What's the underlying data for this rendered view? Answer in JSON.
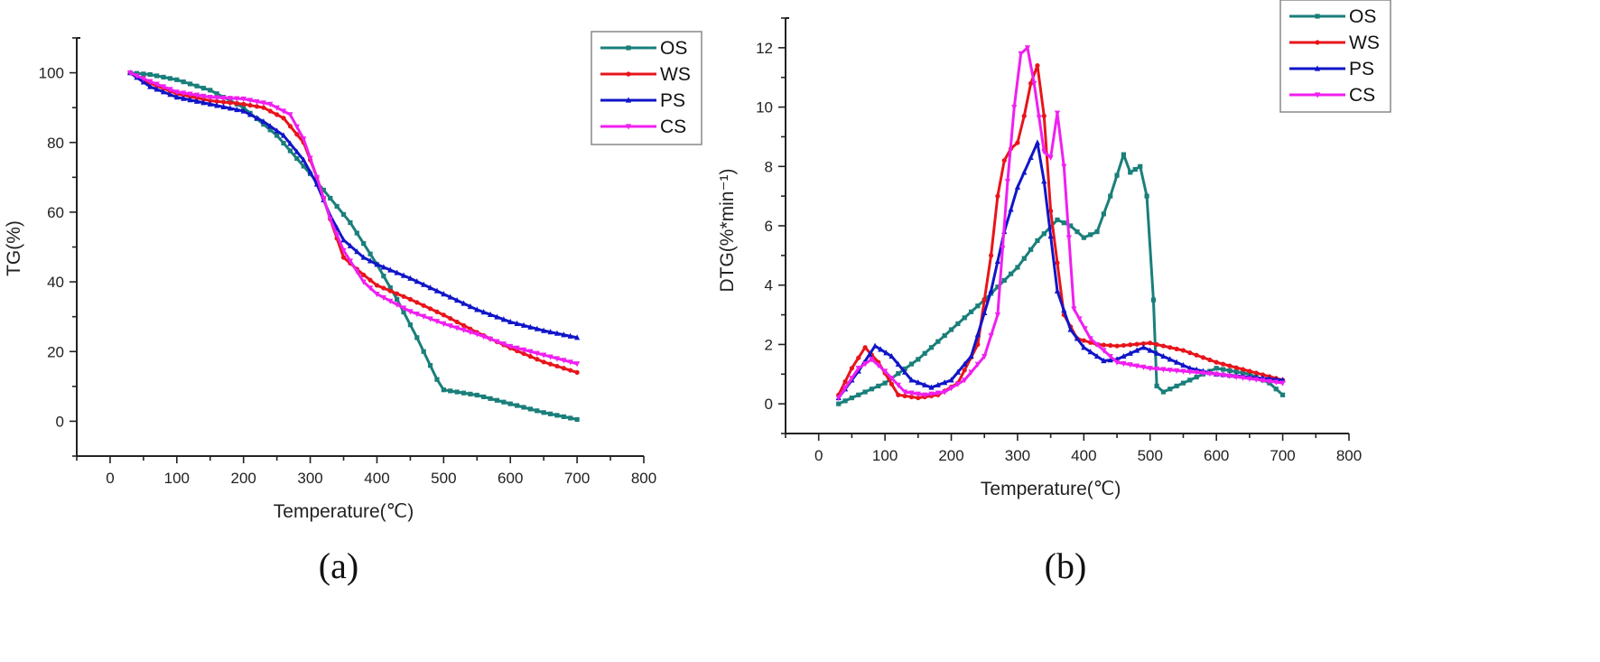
{
  "chart_data": [
    {
      "type": "line",
      "panel_label": "(a)",
      "xlabel": "Temperature(℃)",
      "ylabel": "TG(%)",
      "xlim": [
        -50,
        800
      ],
      "ylim": [
        -10,
        110
      ],
      "xticks": [
        0,
        100,
        200,
        300,
        400,
        500,
        600,
        700,
        800
      ],
      "yticks": [
        0,
        20,
        40,
        60,
        80,
        100
      ],
      "grid": false,
      "legend_position": "top-right",
      "legend": [
        "OS",
        "WS",
        "PS",
        "CS"
      ],
      "series": [
        {
          "name": "OS",
          "color": "#1a7f7a",
          "marker": "square",
          "x": [
            30,
            60,
            100,
            150,
            200,
            250,
            300,
            330,
            360,
            400,
            430,
            460,
            490,
            500,
            550,
            600,
            650,
            700
          ],
          "y": [
            100,
            99.5,
            98,
            95,
            90,
            82,
            71,
            64,
            57,
            45,
            35,
            24,
            12,
            9,
            7.5,
            5,
            2.5,
            0.5
          ]
        },
        {
          "name": "WS",
          "color": "#e8141b",
          "marker": "circle",
          "x": [
            30,
            60,
            100,
            150,
            200,
            230,
            260,
            290,
            310,
            330,
            350,
            380,
            400,
            450,
            500,
            550,
            600,
            650,
            700
          ],
          "y": [
            100,
            97,
            94,
            92,
            91,
            90,
            87,
            80,
            70,
            58,
            47,
            42,
            39,
            35,
            30.5,
            25.5,
            21,
            17,
            14
          ]
        },
        {
          "name": "PS",
          "color": "#1015c8",
          "marker": "triangle-up",
          "x": [
            30,
            60,
            100,
            150,
            200,
            230,
            260,
            290,
            310,
            330,
            350,
            380,
            400,
            450,
            500,
            550,
            600,
            650,
            700
          ],
          "y": [
            100,
            96,
            93,
            91,
            89,
            86,
            82,
            75,
            68,
            59,
            52,
            47,
            45,
            41,
            36.5,
            32,
            28.5,
            26,
            24
          ]
        },
        {
          "name": "CS",
          "color": "#f01ff0",
          "marker": "triangle-down",
          "x": [
            30,
            60,
            100,
            150,
            200,
            240,
            270,
            290,
            310,
            330,
            350,
            380,
            400,
            450,
            500,
            550,
            600,
            650,
            700
          ],
          "y": [
            100,
            97.5,
            94.5,
            93,
            92.5,
            91,
            88,
            81,
            70,
            58,
            49,
            40,
            36.5,
            31.5,
            28,
            25,
            21.5,
            19,
            16.5
          ]
        }
      ]
    },
    {
      "type": "line",
      "panel_label": "(b)",
      "xlabel": "Temperature(℃)",
      "ylabel": "DTG(%*min⁻¹)",
      "xlim": [
        -50,
        800
      ],
      "ylim": [
        -1,
        13
      ],
      "xticks": [
        0,
        100,
        200,
        300,
        400,
        500,
        600,
        700,
        800
      ],
      "yticks": [
        0,
        2,
        4,
        6,
        8,
        10,
        12
      ],
      "grid": false,
      "legend_position": "top-right",
      "legend": [
        "OS",
        "WS",
        "PS",
        "CS"
      ],
      "series": [
        {
          "name": "OS",
          "color": "#1a7f7a",
          "marker": "square",
          "x": [
            30,
            100,
            150,
            200,
            250,
            300,
            330,
            360,
            380,
            400,
            420,
            440,
            460,
            470,
            485,
            495,
            505,
            510,
            520,
            550,
            600,
            650,
            680,
            700
          ],
          "y": [
            0,
            0.7,
            1.5,
            2.5,
            3.5,
            4.6,
            5.5,
            6.2,
            6.0,
            5.6,
            5.8,
            7.0,
            8.4,
            7.8,
            8.0,
            7.0,
            3.5,
            0.6,
            0.4,
            0.7,
            1.2,
            1.0,
            0.7,
            0.3
          ]
        },
        {
          "name": "WS",
          "color": "#e8141b",
          "marker": "circle",
          "x": [
            30,
            50,
            70,
            90,
            120,
            150,
            180,
            210,
            240,
            260,
            270,
            280,
            290,
            300,
            310,
            320,
            330,
            340,
            350,
            370,
            390,
            420,
            450,
            500,
            550,
            600,
            650,
            700
          ],
          "y": [
            0.3,
            1.2,
            1.9,
            1.4,
            0.3,
            0.2,
            0.3,
            0.7,
            2.0,
            5.0,
            7.0,
            8.2,
            8.6,
            8.8,
            9.7,
            10.8,
            11.4,
            9.7,
            6.5,
            3.0,
            2.2,
            2.0,
            1.95,
            2.05,
            1.8,
            1.4,
            1.1,
            0.8
          ]
        },
        {
          "name": "PS",
          "color": "#1015c8",
          "marker": "triangle-up",
          "x": [
            30,
            60,
            85,
            110,
            140,
            170,
            200,
            230,
            260,
            280,
            300,
            320,
            330,
            340,
            360,
            380,
            400,
            430,
            450,
            490,
            520,
            560,
            600,
            650,
            700
          ],
          "y": [
            0.2,
            1.1,
            1.95,
            1.6,
            0.8,
            0.55,
            0.8,
            1.6,
            3.8,
            5.8,
            7.3,
            8.3,
            8.8,
            7.5,
            3.8,
            2.5,
            1.9,
            1.45,
            1.5,
            1.9,
            1.6,
            1.2,
            1.0,
            0.9,
            0.8
          ]
        },
        {
          "name": "CS",
          "color": "#f01ff0",
          "marker": "triangle-down",
          "x": [
            30,
            60,
            80,
            100,
            130,
            160,
            190,
            220,
            250,
            270,
            285,
            295,
            305,
            315,
            325,
            340,
            350,
            360,
            370,
            385,
            410,
            450,
            500,
            550,
            600,
            650,
            700
          ],
          "y": [
            0.2,
            1.2,
            1.5,
            1.1,
            0.4,
            0.3,
            0.4,
            0.8,
            1.6,
            3.0,
            7.5,
            10.0,
            11.8,
            12.0,
            10.8,
            8.5,
            8.3,
            9.8,
            8.0,
            3.2,
            2.2,
            1.4,
            1.2,
            1.1,
            1.0,
            0.85,
            0.7
          ]
        }
      ]
    }
  ]
}
